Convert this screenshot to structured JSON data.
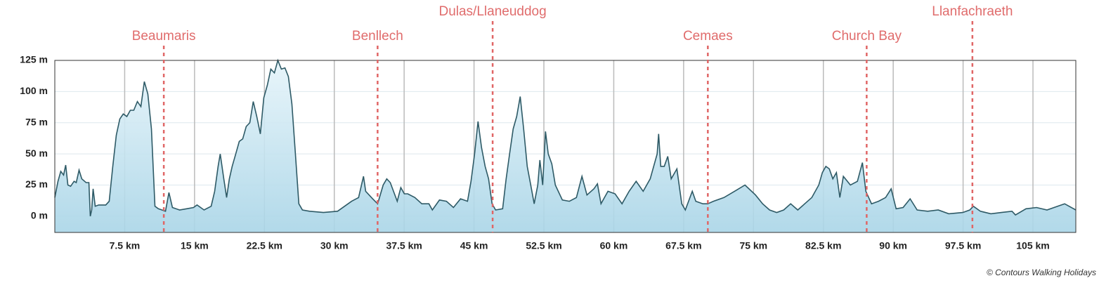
{
  "chart_data": {
    "type": "area",
    "color": "#2e5a66",
    "fill_color": "#b9e0ef",
    "marker_color": "#e06666",
    "grid": true,
    "xlim": [
      0,
      109.6
    ],
    "ylim": [
      -13,
      125
    ],
    "xticks": [
      {
        "value": 7.5,
        "label": "7.5 km"
      },
      {
        "value": 15,
        "label": "15 km"
      },
      {
        "value": 22.5,
        "label": "22.5 km"
      },
      {
        "value": 30,
        "label": "30 km"
      },
      {
        "value": 37.5,
        "label": "37.5 km"
      },
      {
        "value": 45,
        "label": "45 km"
      },
      {
        "value": 52.5,
        "label": "52.5 km"
      },
      {
        "value": 60,
        "label": "60 km"
      },
      {
        "value": 67.5,
        "label": "67.5 km"
      },
      {
        "value": 75,
        "label": "75 km"
      },
      {
        "value": 82.5,
        "label": "82.5 km"
      },
      {
        "value": 90,
        "label": "90 km"
      },
      {
        "value": 97.5,
        "label": "97.5 km"
      },
      {
        "value": 105,
        "label": "105 km"
      }
    ],
    "yticks": [
      {
        "value": 0,
        "label": "0 m"
      },
      {
        "value": 25,
        "label": "25 m"
      },
      {
        "value": 50,
        "label": "50 m"
      },
      {
        "value": 75,
        "label": "75 m"
      },
      {
        "value": 100,
        "label": "100 m"
      },
      {
        "value": 125,
        "label": "125 m"
      }
    ],
    "markers": [
      {
        "name": "Beaumaris",
        "x": 11.7
      },
      {
        "name": "Benllech",
        "x": 34.65
      },
      {
        "name": "Dulas/Llaneuddog",
        "x": 47.0
      },
      {
        "name": "Cemaes",
        "x": 70.1
      },
      {
        "name": "Church Bay",
        "x": 87.15
      },
      {
        "name": "Llanfachraeth",
        "x": 98.5
      }
    ],
    "x": [
      0,
      0.34,
      0.64,
      0.94,
      1.17,
      1.4,
      1.7,
      2.07,
      2.3,
      2.6,
      2.9,
      3.36,
      3.66,
      3.81,
      3.96,
      4.11,
      4.34,
      4.71,
      5.47,
      5.84,
      6.22,
      6.6,
      6.98,
      7.35,
      7.73,
      8.11,
      8.48,
      8.86,
      9.24,
      9.61,
      9.99,
      10.37,
      10.75,
      11.12,
      11.5,
      11.88,
      12.25,
      12.63,
      13.39,
      14.14,
      14.89,
      15.27,
      16.02,
      16.78,
      17.16,
      17.53,
      17.76,
      18.14,
      18.44,
      18.74,
      19.04,
      19.42,
      19.8,
      20.17,
      20.55,
      20.93,
      21.3,
      21.68,
      22.06,
      22.43,
      22.81,
      23.19,
      23.57,
      23.94,
      24.32,
      24.7,
      25.07,
      25.45,
      25.83,
      26.2,
      26.58,
      27.34,
      28.84,
      30.35,
      31.11,
      31.86,
      32.61,
      33.14,
      33.37,
      34.12,
      34.65,
      35.25,
      35.63,
      36.01,
      36.76,
      37.14,
      37.52,
      37.89,
      38.65,
      39.4,
      40.16,
      40.53,
      41.29,
      42.04,
      42.79,
      43.55,
      44.3,
      44.68,
      45.06,
      45.43,
      45.81,
      46.19,
      46.56,
      46.94,
      47.32,
      48.07,
      48.45,
      48.82,
      49.2,
      49.58,
      49.96,
      50.33,
      50.71,
      51.09,
      51.46,
      51.84,
      52.07,
      52.37,
      52.67,
      52.97,
      53.35,
      53.73,
      54.48,
      55.24,
      55.99,
      56.59,
      57.12,
      57.87,
      58.25,
      58.63,
      59.38,
      60.14,
      60.89,
      61.65,
      62.4,
      63.16,
      63.91,
      64.66,
      64.82,
      65.04,
      65.42,
      65.8,
      66.17,
      66.78,
      67.3,
      67.68,
      68.43,
      68.81,
      69.57,
      70.09,
      70.7,
      71.83,
      72.96,
      74.09,
      75.22,
      75.98,
      76.73,
      77.49,
      78.24,
      78.99,
      79.75,
      80.5,
      81.26,
      82.01,
      82.39,
      82.77,
      83.14,
      83.52,
      83.9,
      84.27,
      84.65,
      85.4,
      86.16,
      86.69,
      87.06,
      87.67,
      88.42,
      89.18,
      89.78,
      90.31,
      91.06,
      91.81,
      92.57,
      93.7,
      94.83,
      95.96,
      97.47,
      98.22,
      98.6,
      99.35,
      100.48,
      101.61,
      102.75,
      103.12,
      104.25,
      105.38,
      106.51,
      107.64,
      108.4,
      109.6
    ],
    "values": [
      15,
      28,
      36,
      33,
      41,
      25,
      24,
      28,
      27,
      37,
      30,
      27,
      27,
      0,
      5,
      22,
      8,
      9,
      9,
      12,
      40,
      65,
      78,
      82,
      80,
      85,
      85,
      92,
      88,
      108,
      98,
      70,
      8,
      6,
      5,
      4,
      19,
      7,
      5,
      6,
      7,
      9,
      5,
      8,
      20,
      40,
      50,
      30,
      15,
      30,
      40,
      50,
      60,
      62,
      72,
      75,
      92,
      80,
      66,
      95,
      105,
      118,
      115,
      125,
      118,
      119,
      112,
      90,
      50,
      10,
      5,
      4,
      3,
      4,
      8,
      12,
      15,
      32,
      20,
      14,
      10,
      25,
      30,
      27,
      12,
      23,
      18,
      18,
      15,
      10,
      10,
      5,
      13,
      12,
      7,
      14,
      12,
      28,
      50,
      76,
      55,
      40,
      30,
      10,
      5,
      6,
      30,
      50,
      70,
      80,
      96,
      70,
      40,
      25,
      10,
      25,
      45,
      25,
      68,
      50,
      42,
      25,
      13,
      12,
      15,
      32,
      17,
      22,
      26,
      10,
      20,
      18,
      10,
      20,
      28,
      20,
      30,
      50,
      66,
      40,
      40,
      48,
      30,
      38,
      10,
      5,
      20,
      12,
      10,
      10,
      12,
      15,
      20,
      25,
      17,
      10,
      5,
      3,
      5,
      10,
      5,
      10,
      15,
      25,
      35,
      40,
      38,
      30,
      35,
      15,
      32,
      25,
      28,
      43,
      20,
      10,
      12,
      15,
      22,
      6,
      7,
      14,
      5,
      4,
      5,
      2,
      3,
      5,
      8,
      4,
      2,
      3,
      4,
      1,
      6,
      7,
      5,
      8,
      10,
      5
    ],
    "copyright": "© Contours Walking Holidays"
  }
}
